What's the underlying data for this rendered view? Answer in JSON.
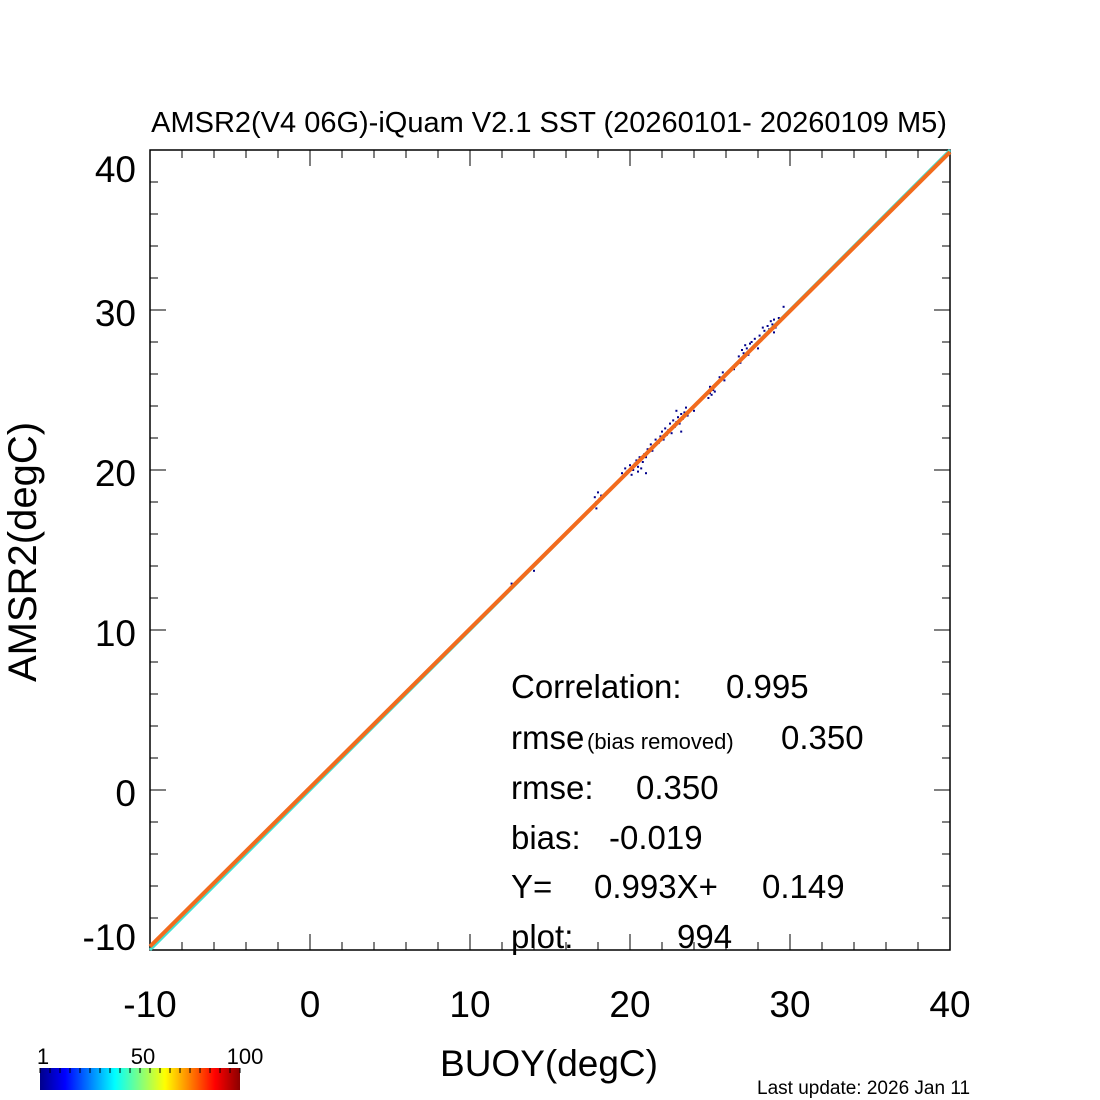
{
  "chart_data": {
    "type": "scatter",
    "title": "AMSR2(V4 06G)-iQuam V2.1 SST (20260101- 20260109 M5)",
    "xlabel": "BUOY(degC)",
    "ylabel": "AMSR2(degC)",
    "xlim": [
      -10,
      40
    ],
    "ylim": [
      -10,
      40
    ],
    "xticks": [
      "-10",
      "0",
      "10",
      "20",
      "30",
      "40"
    ],
    "yticks": [
      "-10",
      "0",
      "10",
      "20",
      "30",
      "40"
    ],
    "grid": false,
    "point_color": "#00008b",
    "identity_line_color": "#40e0d0",
    "fit_line_color": "#f26b1d",
    "fit": {
      "slope": 0.993,
      "intercept": 0.149
    },
    "points": [
      [
        12.6,
        12.9
      ],
      [
        14.0,
        13.7
      ],
      [
        17.9,
        17.6
      ],
      [
        17.9,
        18.0
      ],
      [
        18.0,
        18.6
      ],
      [
        18.1,
        18.2
      ],
      [
        18.2,
        18.4
      ],
      [
        17.8,
        18.3
      ],
      [
        19.5,
        19.8
      ],
      [
        19.7,
        20.1
      ],
      [
        19.8,
        19.9
      ],
      [
        20.0,
        20.3
      ],
      [
        20.1,
        19.7
      ],
      [
        20.2,
        20.0
      ],
      [
        20.3,
        20.4
      ],
      [
        20.4,
        20.6
      ],
      [
        20.5,
        20.2
      ],
      [
        20.6,
        20.8
      ],
      [
        20.7,
        20.1
      ],
      [
        20.8,
        20.5
      ],
      [
        20.9,
        21.0
      ],
      [
        21.0,
        20.8
      ],
      [
        21.0,
        19.8
      ],
      [
        20.5,
        19.9
      ],
      [
        21.1,
        21.3
      ],
      [
        21.3,
        21.6
      ],
      [
        21.4,
        21.2
      ],
      [
        21.5,
        21.5
      ],
      [
        21.6,
        21.9
      ],
      [
        21.8,
        21.7
      ],
      [
        21.9,
        22.1
      ],
      [
        22.0,
        22.4
      ],
      [
        22.1,
        21.9
      ],
      [
        22.2,
        22.6
      ],
      [
        22.3,
        22.2
      ],
      [
        22.4,
        22.5
      ],
      [
        22.5,
        22.9
      ],
      [
        22.6,
        22.3
      ],
      [
        22.7,
        23.1
      ],
      [
        22.8,
        22.7
      ],
      [
        22.9,
        23.0
      ],
      [
        23.0,
        23.3
      ],
      [
        23.1,
        22.9
      ],
      [
        23.2,
        23.5
      ],
      [
        23.3,
        23.2
      ],
      [
        23.4,
        23.6
      ],
      [
        23.5,
        23.9
      ],
      [
        23.6,
        23.4
      ],
      [
        23.8,
        23.8
      ],
      [
        24.0,
        23.7
      ],
      [
        23.2,
        22.4
      ],
      [
        22.9,
        23.7
      ],
      [
        24.9,
        24.5
      ],
      [
        25.0,
        24.8
      ],
      [
        25.1,
        24.7
      ],
      [
        25.2,
        25.0
      ],
      [
        25.3,
        24.9
      ],
      [
        25.0,
        25.2
      ],
      [
        25.6,
        25.8
      ],
      [
        25.8,
        26.1
      ],
      [
        25.9,
        25.6
      ],
      [
        26.5,
        26.3
      ],
      [
        26.8,
        27.1
      ],
      [
        26.9,
        26.7
      ],
      [
        27.0,
        27.5
      ],
      [
        27.1,
        27.3
      ],
      [
        27.2,
        27.8
      ],
      [
        27.3,
        27.6
      ],
      [
        27.4,
        27.2
      ],
      [
        27.5,
        27.9
      ],
      [
        27.6,
        28.0
      ],
      [
        27.7,
        27.7
      ],
      [
        27.8,
        28.2
      ],
      [
        27.9,
        27.9
      ],
      [
        28.0,
        27.6
      ],
      [
        28.1,
        28.4
      ],
      [
        28.2,
        28.1
      ],
      [
        28.4,
        28.7
      ],
      [
        28.5,
        28.5
      ],
      [
        28.6,
        29.0
      ],
      [
        28.7,
        28.8
      ],
      [
        28.8,
        29.3
      ],
      [
        28.9,
        29.1
      ],
      [
        29.0,
        29.4
      ],
      [
        29.1,
        28.9
      ],
      [
        29.2,
        29.2
      ],
      [
        29.3,
        29.5
      ],
      [
        29.4,
        29.3
      ],
      [
        29.0,
        28.6
      ],
      [
        29.6,
        30.2
      ],
      [
        28.3,
        28.9
      ]
    ],
    "stats": {
      "correlation_label": "Correlation:",
      "correlation_value": "0.995",
      "rmse_br_label": "rmse",
      "rmse_br_sub": "(bias removed)",
      "rmse_br_value": "0.350",
      "rmse_label": "rmse:",
      "rmse_value": "0.350",
      "bias_label": "bias:",
      "bias_value": "-0.019",
      "eq_y": "Y=",
      "eq_slope": "0.993X+",
      "eq_intercept": "0.149",
      "plot_label": "plot:",
      "plot_value": "994"
    },
    "colorbar": {
      "labels": [
        "1",
        "50",
        "100"
      ],
      "colors": [
        "#00008b",
        "#0000ff",
        "#0080ff",
        "#00ffff",
        "#80ff80",
        "#ffff00",
        "#ff8000",
        "#ff0000",
        "#8b0000"
      ]
    },
    "footer": "Last update: 2026 Jan 11"
  }
}
